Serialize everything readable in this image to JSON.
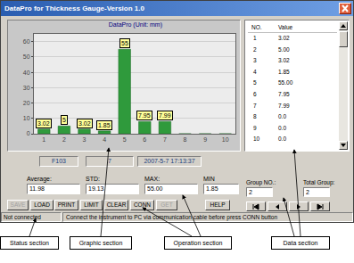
{
  "window": {
    "title": "DataPro for Thickness Gauge-Version 1.0"
  },
  "chart_data": {
    "type": "bar",
    "title": "DataPro (Unit: mm)",
    "categories": [
      "1",
      "2",
      "3",
      "4",
      "5",
      "6",
      "7",
      "8",
      "9",
      "10"
    ],
    "values": [
      3.02,
      5.0,
      3.02,
      1.85,
      55.0,
      7.95,
      7.99,
      0,
      0,
      0
    ],
    "value_labels": [
      "3.02",
      "5",
      "3.02",
      "1.85",
      "55",
      "7.95",
      "7.99",
      null,
      null,
      null
    ],
    "color": "#2f9a3c",
    "ylim": [
      0,
      65
    ],
    "yticks": [
      0,
      10,
      20,
      30,
      40,
      50,
      60
    ],
    "grid": true,
    "data_labels": true
  },
  "info": [
    "F103",
    "7",
    "2007-5-7 17:13:37"
  ],
  "stats": [
    {
      "label": "Average:",
      "value": "11.98"
    },
    {
      "label": "STD:",
      "value": "19.13"
    },
    {
      "label": "MAX:",
      "value": "55.00"
    },
    {
      "label": "MIN",
      "value": "1.85"
    }
  ],
  "buttons": [
    {
      "label": "SAVE",
      "enabled": false
    },
    {
      "label": "LOAD",
      "enabled": true
    },
    {
      "label": "PRINT",
      "enabled": true
    },
    {
      "label": "LIMIT",
      "enabled": true
    },
    {
      "label": "CLEAR",
      "enabled": true
    },
    {
      "label": "CONN",
      "enabled": true
    },
    {
      "label": "GET",
      "enabled": false
    },
    {
      "label": "HELP",
      "enabled": true
    }
  ],
  "status": [
    "Not connected",
    "Connect the instrument to PC via communication cable before press CONN button"
  ],
  "data_list": {
    "header": [
      "NO.",
      "Value"
    ],
    "rows": [
      [
        "1",
        "3.02"
      ],
      [
        "2",
        "5.00"
      ],
      [
        "3",
        "3.02"
      ],
      [
        "4",
        "1.85"
      ],
      [
        "5",
        "55.00"
      ],
      [
        "6",
        "7.95"
      ],
      [
        "7",
        "7.99"
      ],
      [
        "8",
        "0.0"
      ],
      [
        "9",
        "0.0"
      ],
      [
        "10",
        "0.0"
      ]
    ]
  },
  "group": [
    {
      "label": "Group NO.:",
      "value": "2"
    },
    {
      "label": "Total Group:",
      "value": "2"
    }
  ],
  "callouts": [
    "Status section",
    "Graphic section",
    "Operation section",
    "Data section"
  ]
}
